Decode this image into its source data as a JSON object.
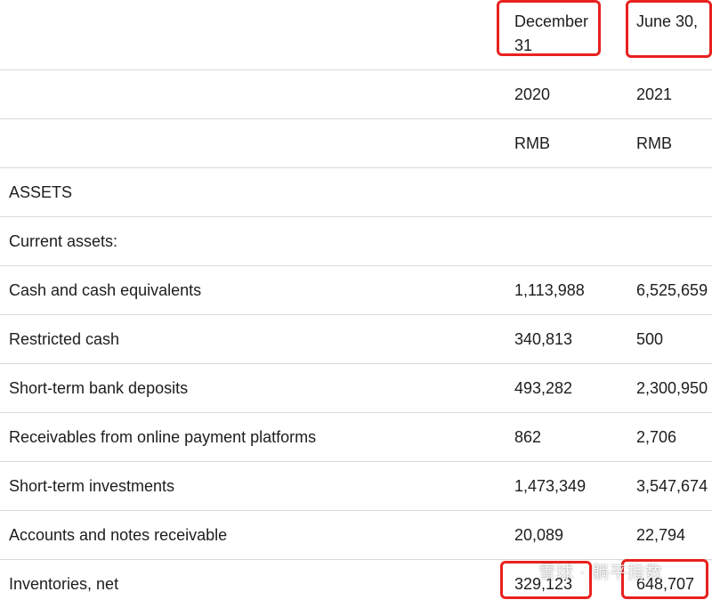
{
  "header": {
    "col1": "December 31",
    "col2": "June 30,"
  },
  "rows": [
    {
      "label": "",
      "col1": "2020",
      "col2": "2021"
    },
    {
      "label": "",
      "col1": "RMB",
      "col2": "RMB"
    },
    {
      "label": "ASSETS",
      "col1": "",
      "col2": ""
    },
    {
      "label": "Current assets:",
      "col1": "",
      "col2": ""
    },
    {
      "label": "Cash and cash equivalents",
      "col1": "1,113,988",
      "col2": "6,525,659"
    },
    {
      "label": "Restricted cash",
      "col1": "340,813",
      "col2": "500"
    },
    {
      "label": "Short-term bank deposits",
      "col1": "493,282",
      "col2": "2,300,950"
    },
    {
      "label": "Receivables from online payment platforms",
      "col1": "862",
      "col2": "2,706"
    },
    {
      "label": "Short-term investments",
      "col1": "1,473,349",
      "col2": "3,547,674"
    },
    {
      "label": "Accounts and notes receivable",
      "col1": "20,089",
      "col2": "22,794"
    },
    {
      "label": "Inventories, net",
      "col1": "329,123",
      "col2": "648,707"
    }
  ],
  "watermark": "雪球 · 躺平指数",
  "highlight_color": "#e8211e"
}
